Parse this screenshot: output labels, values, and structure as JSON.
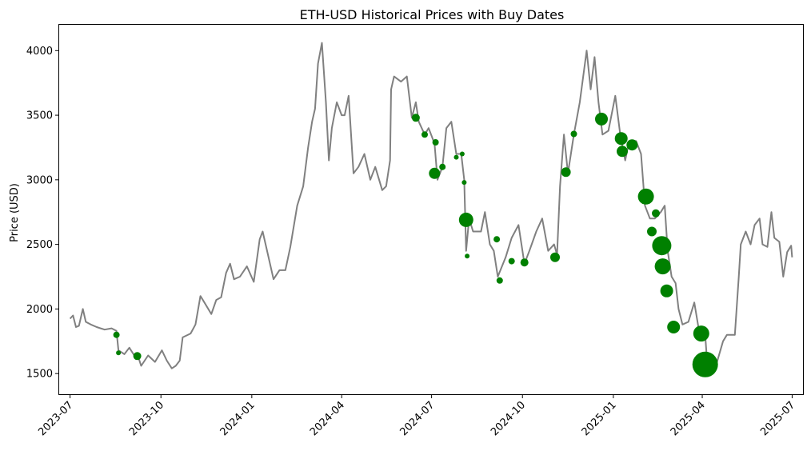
{
  "chart_data": {
    "type": "line",
    "title": "ETH-USD Historical Prices with Buy Dates",
    "xlabel": "",
    "ylabel": "Price (USD)",
    "xlim": [
      "2023-06-20",
      "2025-07-12"
    ],
    "ylim": [
      1340,
      4200
    ],
    "grid": false,
    "legend": "none",
    "x_ticks": [
      "2023-07",
      "2023-10",
      "2024-01",
      "2024-04",
      "2024-07",
      "2024-10",
      "2025-01",
      "2025-04",
      "2025-07"
    ],
    "y_ticks": [
      1500,
      2000,
      2500,
      3000,
      3500,
      4000
    ],
    "colors": {
      "line": "#808080",
      "markers": "#008000"
    },
    "series": [
      {
        "points": [
          [
            "2023-07-01",
            1925
          ],
          [
            "2023-07-04",
            1950
          ],
          [
            "2023-07-07",
            1860
          ],
          [
            "2023-07-10",
            1870
          ],
          [
            "2023-07-14",
            2000
          ],
          [
            "2023-07-17",
            1900
          ],
          [
            "2023-07-22",
            1880
          ],
          [
            "2023-07-28",
            1860
          ],
          [
            "2023-08-05",
            1840
          ],
          [
            "2023-08-12",
            1850
          ],
          [
            "2023-08-17",
            1830
          ],
          [
            "2023-08-19",
            1680
          ],
          [
            "2023-08-25",
            1650
          ],
          [
            "2023-08-30",
            1700
          ],
          [
            "2023-09-04",
            1640
          ],
          [
            "2023-09-08",
            1630
          ],
          [
            "2023-09-11",
            1560
          ],
          [
            "2023-09-18",
            1640
          ],
          [
            "2023-09-25",
            1590
          ],
          [
            "2023-10-02",
            1680
          ],
          [
            "2023-10-07",
            1600
          ],
          [
            "2023-10-12",
            1540
          ],
          [
            "2023-10-16",
            1560
          ],
          [
            "2023-10-20",
            1600
          ],
          [
            "2023-10-23",
            1780
          ],
          [
            "2023-10-31",
            1810
          ],
          [
            "2023-11-05",
            1880
          ],
          [
            "2023-11-10",
            2100
          ],
          [
            "2023-11-14",
            2050
          ],
          [
            "2023-11-21",
            1960
          ],
          [
            "2023-11-26",
            2070
          ],
          [
            "2023-12-01",
            2090
          ],
          [
            "2023-12-06",
            2280
          ],
          [
            "2023-12-10",
            2350
          ],
          [
            "2023-12-14",
            2230
          ],
          [
            "2023-12-20",
            2250
          ],
          [
            "2023-12-27",
            2330
          ],
          [
            "2024-01-03",
            2210
          ],
          [
            "2024-01-09",
            2540
          ],
          [
            "2024-01-12",
            2600
          ],
          [
            "2024-01-15",
            2500
          ],
          [
            "2024-01-23",
            2230
          ],
          [
            "2024-01-29",
            2300
          ],
          [
            "2024-02-04",
            2300
          ],
          [
            "2024-02-09",
            2480
          ],
          [
            "2024-02-16",
            2800
          ],
          [
            "2024-02-22",
            2950
          ],
          [
            "2024-02-27",
            3250
          ],
          [
            "2024-03-02",
            3450
          ],
          [
            "2024-03-05",
            3550
          ],
          [
            "2024-03-08",
            3900
          ],
          [
            "2024-03-12",
            4060
          ],
          [
            "2024-03-16",
            3600
          ],
          [
            "2024-03-19",
            3150
          ],
          [
            "2024-03-22",
            3400
          ],
          [
            "2024-03-27",
            3600
          ],
          [
            "2024-04-01",
            3500
          ],
          [
            "2024-04-04",
            3500
          ],
          [
            "2024-04-08",
            3650
          ],
          [
            "2024-04-13",
            3050
          ],
          [
            "2024-04-18",
            3100
          ],
          [
            "2024-04-24",
            3200
          ],
          [
            "2024-04-30",
            3000
          ],
          [
            "2024-05-05",
            3100
          ],
          [
            "2024-05-12",
            2920
          ],
          [
            "2024-05-16",
            2950
          ],
          [
            "2024-05-20",
            3150
          ],
          [
            "2024-05-21",
            3700
          ],
          [
            "2024-05-24",
            3800
          ],
          [
            "2024-05-31",
            3760
          ],
          [
            "2024-06-06",
            3800
          ],
          [
            "2024-06-11",
            3480
          ],
          [
            "2024-06-15",
            3600
          ],
          [
            "2024-06-18",
            3450
          ],
          [
            "2024-06-24",
            3350
          ],
          [
            "2024-06-28",
            3400
          ],
          [
            "2024-07-04",
            3280
          ],
          [
            "2024-07-07",
            3000
          ],
          [
            "2024-07-12",
            3100
          ],
          [
            "2024-07-16",
            3400
          ],
          [
            "2024-07-21",
            3450
          ],
          [
            "2024-07-26",
            3200
          ],
          [
            "2024-07-31",
            3200
          ],
          [
            "2024-08-03",
            3000
          ],
          [
            "2024-08-05",
            2450
          ],
          [
            "2024-08-08",
            2700
          ],
          [
            "2024-08-12",
            2600
          ],
          [
            "2024-08-20",
            2600
          ],
          [
            "2024-08-24",
            2750
          ],
          [
            "2024-08-29",
            2500
          ],
          [
            "2024-09-02",
            2450
          ],
          [
            "2024-09-06",
            2250
          ],
          [
            "2024-09-14",
            2400
          ],
          [
            "2024-09-20",
            2550
          ],
          [
            "2024-09-27",
            2650
          ],
          [
            "2024-10-03",
            2350
          ],
          [
            "2024-10-08",
            2450
          ],
          [
            "2024-10-15",
            2600
          ],
          [
            "2024-10-21",
            2700
          ],
          [
            "2024-10-27",
            2450
          ],
          [
            "2024-11-02",
            2500
          ],
          [
            "2024-11-05",
            2420
          ],
          [
            "2024-11-08",
            2950
          ],
          [
            "2024-11-12",
            3350
          ],
          [
            "2024-11-16",
            3050
          ],
          [
            "2024-11-22",
            3350
          ],
          [
            "2024-11-28",
            3600
          ],
          [
            "2024-12-05",
            4000
          ],
          [
            "2024-12-09",
            3700
          ],
          [
            "2024-12-13",
            3950
          ],
          [
            "2024-12-17",
            3600
          ],
          [
            "2024-12-21",
            3350
          ],
          [
            "2024-12-27",
            3380
          ],
          [
            "2025-01-03",
            3650
          ],
          [
            "2025-01-08",
            3350
          ],
          [
            "2025-01-13",
            3150
          ],
          [
            "2025-01-17",
            3300
          ],
          [
            "2025-01-24",
            3300
          ],
          [
            "2025-01-29",
            3200
          ],
          [
            "2025-02-02",
            2800
          ],
          [
            "2025-02-07",
            2700
          ],
          [
            "2025-02-12",
            2700
          ],
          [
            "2025-02-18",
            2750
          ],
          [
            "2025-02-22",
            2800
          ],
          [
            "2025-02-25",
            2450
          ],
          [
            "2025-03-01",
            2250
          ],
          [
            "2025-03-05",
            2200
          ],
          [
            "2025-03-08",
            2000
          ],
          [
            "2025-03-12",
            1880
          ],
          [
            "2025-03-18",
            1900
          ],
          [
            "2025-03-24",
            2050
          ],
          [
            "2025-03-29",
            1820
          ],
          [
            "2025-04-04",
            1800
          ],
          [
            "2025-04-07",
            1480
          ],
          [
            "2025-04-10",
            1570
          ],
          [
            "2025-04-16",
            1590
          ],
          [
            "2025-04-22",
            1750
          ],
          [
            "2025-04-26",
            1800
          ],
          [
            "2025-05-04",
            1800
          ],
          [
            "2025-05-08",
            2250
          ],
          [
            "2025-05-10",
            2500
          ],
          [
            "2025-05-15",
            2600
          ],
          [
            "2025-05-20",
            2500
          ],
          [
            "2025-05-24",
            2650
          ],
          [
            "2025-05-29",
            2700
          ],
          [
            "2025-06-01",
            2500
          ],
          [
            "2025-06-06",
            2480
          ],
          [
            "2025-06-10",
            2750
          ],
          [
            "2025-06-13",
            2550
          ],
          [
            "2025-06-18",
            2520
          ],
          [
            "2025-06-22",
            2250
          ],
          [
            "2025-06-26",
            2440
          ],
          [
            "2025-06-30",
            2490
          ],
          [
            "2025-07-01",
            2400
          ]
        ]
      }
    ],
    "buy_points": [
      {
        "date": "2023-08-17",
        "price": 1800,
        "size": 4
      },
      {
        "date": "2023-08-19",
        "price": 1660,
        "size": 3
      },
      {
        "date": "2023-09-07",
        "price": 1635,
        "size": 5
      },
      {
        "date": "2024-06-15",
        "price": 3480,
        "size": 5
      },
      {
        "date": "2024-06-24",
        "price": 3350,
        "size": 4
      },
      {
        "date": "2024-07-04",
        "price": 3050,
        "size": 7
      },
      {
        "date": "2024-07-05",
        "price": 3290,
        "size": 4
      },
      {
        "date": "2024-07-12",
        "price": 3100,
        "size": 4
      },
      {
        "date": "2024-07-26",
        "price": 3175,
        "size": 3
      },
      {
        "date": "2024-08-01",
        "price": 3200,
        "size": 3
      },
      {
        "date": "2024-08-03",
        "price": 2980,
        "size": 3
      },
      {
        "date": "2024-08-05",
        "price": 2690,
        "size": 9
      },
      {
        "date": "2024-08-06",
        "price": 2410,
        "size": 3
      },
      {
        "date": "2024-09-05",
        "price": 2540,
        "size": 4
      },
      {
        "date": "2024-09-08",
        "price": 2220,
        "size": 4
      },
      {
        "date": "2024-09-20",
        "price": 2370,
        "size": 4
      },
      {
        "date": "2024-10-03",
        "price": 2360,
        "size": 5
      },
      {
        "date": "2024-11-03",
        "price": 2400,
        "size": 6
      },
      {
        "date": "2024-11-14",
        "price": 3060,
        "size": 6
      },
      {
        "date": "2024-11-22",
        "price": 3355,
        "size": 4
      },
      {
        "date": "2024-12-20",
        "price": 3470,
        "size": 8
      },
      {
        "date": "2025-01-09",
        "price": 3320,
        "size": 8
      },
      {
        "date": "2025-01-10",
        "price": 3220,
        "size": 7
      },
      {
        "date": "2025-01-20",
        "price": 3270,
        "size": 7
      },
      {
        "date": "2025-02-03",
        "price": 2870,
        "size": 10
      },
      {
        "date": "2025-02-09",
        "price": 2600,
        "size": 6
      },
      {
        "date": "2025-02-13",
        "price": 2740,
        "size": 5
      },
      {
        "date": "2025-02-19",
        "price": 2490,
        "size": 12
      },
      {
        "date": "2025-02-20",
        "price": 2330,
        "size": 10
      },
      {
        "date": "2025-02-24",
        "price": 2140,
        "size": 8
      },
      {
        "date": "2025-03-03",
        "price": 1860,
        "size": 8
      },
      {
        "date": "2025-03-31",
        "price": 1810,
        "size": 10
      },
      {
        "date": "2025-04-04",
        "price": 1570,
        "size": 16
      }
    ]
  }
}
